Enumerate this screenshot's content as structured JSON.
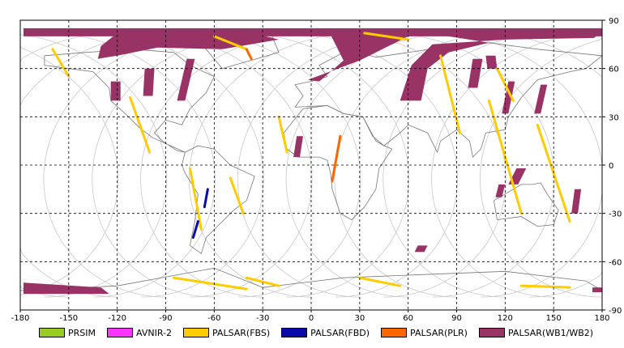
{
  "map": {
    "x_ticks": [
      {
        "value": -180,
        "label": "-180"
      },
      {
        "value": -150,
        "label": "-150"
      },
      {
        "value": -120,
        "label": "-120"
      },
      {
        "value": -90,
        "label": "-90"
      },
      {
        "value": -60,
        "label": "-60"
      },
      {
        "value": -30,
        "label": "-30"
      },
      {
        "value": 0,
        "label": "0"
      },
      {
        "value": 30,
        "label": "30"
      },
      {
        "value": 60,
        "label": "60"
      },
      {
        "value": 90,
        "label": "90"
      },
      {
        "value": 120,
        "label": "120"
      },
      {
        "value": 150,
        "label": "150"
      },
      {
        "value": 180,
        "label": "180"
      }
    ],
    "y_ticks": [
      {
        "value": 90,
        "label": "90"
      },
      {
        "value": 60,
        "label": "60"
      },
      {
        "value": 30,
        "label": "30"
      },
      {
        "value": 0,
        "label": "0"
      },
      {
        "value": -30,
        "label": "-30"
      },
      {
        "value": -60,
        "label": "-60"
      },
      {
        "value": -90,
        "label": "-90"
      }
    ],
    "lon_range": [
      -180,
      180
    ],
    "lat_range": [
      -90,
      90
    ],
    "grid": true,
    "colors": {
      "PRSIM": "#99cc22",
      "AVNIR-2": "#ff33ff",
      "PALSAR(FBS)": "#ffcc00",
      "PALSAR(FBD)": "#0a0aaa",
      "PALSAR(PLR)": "#ff6600",
      "PALSAR(WB1/WB2)": "#993366",
      "coast": "#777777",
      "orbit": "#c8c8c8"
    },
    "swaths": [
      {
        "sensor": "PALSAR(WB1/WB2)",
        "pts": [
          [
            -178,
            85
          ],
          [
            180,
            85
          ],
          [
            180,
            80
          ],
          [
            -178,
            80
          ]
        ]
      },
      {
        "sensor": "PALSAR(WB1/WB2)",
        "pts": [
          [
            -120,
            82
          ],
          [
            -40,
            83
          ],
          [
            -20,
            78
          ],
          [
            -55,
            72
          ],
          [
            -95,
            73
          ],
          [
            -120,
            68
          ],
          [
            -132,
            66
          ],
          [
            -130,
            74
          ]
        ]
      },
      {
        "sensor": "PALSAR(WB1/WB2)",
        "pts": [
          [
            10,
            85
          ],
          [
            60,
            80
          ],
          [
            30,
            65
          ],
          [
            -2,
            53
          ],
          [
            5,
            52
          ],
          [
            20,
            65
          ]
        ]
      },
      {
        "sensor": "PALSAR(WB1/WB2)",
        "pts": [
          [
            60,
            84
          ],
          [
            150,
            84
          ],
          [
            180,
            83
          ],
          [
            175,
            79
          ],
          [
            120,
            78
          ],
          [
            75,
            75
          ],
          [
            62,
            62
          ],
          [
            55,
            40
          ],
          [
            68,
            40
          ],
          [
            72,
            60
          ],
          [
            85,
            70
          ],
          [
            110,
            76
          ]
        ]
      },
      {
        "sensor": "PALSAR(WB1/WB2)",
        "pts": [
          [
            -77,
            66
          ],
          [
            -72,
            66
          ],
          [
            -78,
            40
          ],
          [
            -83,
            40
          ]
        ]
      },
      {
        "sensor": "PALSAR(WB1/WB2)",
        "pts": [
          [
            -124,
            52
          ],
          [
            -118,
            52
          ],
          [
            -118,
            40
          ],
          [
            -124,
            40
          ]
        ]
      },
      {
        "sensor": "PALSAR(WB1/WB2)",
        "pts": [
          [
            -103,
            60
          ],
          [
            -97,
            60
          ],
          [
            -98,
            43
          ],
          [
            -104,
            43
          ]
        ]
      },
      {
        "sensor": "PALSAR(WB1/WB2)",
        "pts": [
          [
            100,
            66
          ],
          [
            106,
            66
          ],
          [
            103,
            48
          ],
          [
            97,
            48
          ]
        ]
      },
      {
        "sensor": "PALSAR(WB1/WB2)",
        "pts": [
          [
            122,
            52
          ],
          [
            126,
            52
          ],
          [
            122,
            32
          ],
          [
            118,
            32
          ]
        ]
      },
      {
        "sensor": "PALSAR(WB1/WB2)",
        "pts": [
          [
            142,
            50
          ],
          [
            146,
            50
          ],
          [
            142,
            32
          ],
          [
            138,
            32
          ]
        ]
      },
      {
        "sensor": "PALSAR(WB1/WB2)",
        "pts": [
          [
            108,
            68
          ],
          [
            114,
            68
          ],
          [
            115,
            60
          ],
          [
            109,
            60
          ]
        ]
      },
      {
        "sensor": "PALSAR(WB1/WB2)",
        "pts": [
          [
            127,
            -2
          ],
          [
            133,
            -2
          ],
          [
            128,
            -12
          ],
          [
            122,
            -12
          ]
        ]
      },
      {
        "sensor": "PALSAR(WB1/WB2)",
        "pts": [
          [
            163,
            -15
          ],
          [
            167,
            -15
          ],
          [
            165,
            -30
          ],
          [
            161,
            -30
          ]
        ]
      },
      {
        "sensor": "PALSAR(WB1/WB2)",
        "pts": [
          [
            -9,
            18
          ],
          [
            -5,
            18
          ],
          [
            -7,
            5
          ],
          [
            -11,
            5
          ]
        ]
      },
      {
        "sensor": "PALSAR(WB1/WB2)",
        "pts": [
          [
            -178,
            -73
          ],
          [
            -130,
            -76
          ],
          [
            -125,
            -80
          ],
          [
            -178,
            -80
          ]
        ]
      },
      {
        "sensor": "PALSAR(WB1/WB2)",
        "pts": [
          [
            174,
            -76
          ],
          [
            180,
            -76
          ],
          [
            180,
            -79
          ],
          [
            174,
            -79
          ]
        ]
      },
      {
        "sensor": "PALSAR(WB1/WB2)",
        "pts": [
          [
            66,
            -50
          ],
          [
            72,
            -50
          ],
          [
            70,
            -54
          ],
          [
            64,
            -54
          ]
        ]
      },
      {
        "sensor": "PALSAR(WB1/WB2)",
        "pts": [
          [
            116,
            -12
          ],
          [
            120,
            -12
          ],
          [
            118,
            -20
          ],
          [
            114,
            -20
          ]
        ]
      },
      {
        "sensor": "PALSAR(FBS)",
        "line": [
          [
            -60,
            80
          ],
          [
            -40,
            72
          ]
        ]
      },
      {
        "sensor": "PALSAR(FBS)",
        "line": [
          [
            33,
            82
          ],
          [
            60,
            78
          ]
        ]
      },
      {
        "sensor": "PALSAR(FBS)",
        "line": [
          [
            -112,
            42
          ],
          [
            -100,
            8
          ]
        ]
      },
      {
        "sensor": "PALSAR(FBS)",
        "line": [
          [
            -75,
            -2
          ],
          [
            -68,
            -40
          ]
        ]
      },
      {
        "sensor": "PALSAR(FBS)",
        "line": [
          [
            -50,
            -8
          ],
          [
            -42,
            -30
          ]
        ]
      },
      {
        "sensor": "PALSAR(FBS)",
        "line": [
          [
            -85,
            -70
          ],
          [
            -40,
            -77
          ]
        ]
      },
      {
        "sensor": "PALSAR(FBS)",
        "line": [
          [
            -40,
            -70
          ],
          [
            -20,
            -75
          ]
        ]
      },
      {
        "sensor": "PALSAR(FBS)",
        "line": [
          [
            30,
            -70
          ],
          [
            55,
            -75
          ]
        ]
      },
      {
        "sensor": "PALSAR(FBS)",
        "line": [
          [
            130,
            -75
          ],
          [
            160,
            -76
          ]
        ]
      },
      {
        "sensor": "PALSAR(FBS)",
        "line": [
          [
            80,
            68
          ],
          [
            92,
            20
          ]
        ]
      },
      {
        "sensor": "PALSAR(FBS)",
        "line": [
          [
            110,
            40
          ],
          [
            130,
            -30
          ]
        ]
      },
      {
        "sensor": "PALSAR(FBS)",
        "line": [
          [
            140,
            25
          ],
          [
            160,
            -35
          ]
        ]
      },
      {
        "sensor": "PALSAR(FBS)",
        "line": [
          [
            -160,
            72
          ],
          [
            -150,
            55
          ]
        ]
      },
      {
        "sensor": "PALSAR(FBS)",
        "line": [
          [
            -20,
            30
          ],
          [
            -15,
            8
          ]
        ]
      },
      {
        "sensor": "PALSAR(FBS)",
        "line": [
          [
            115,
            60
          ],
          [
            125,
            40
          ]
        ]
      },
      {
        "sensor": "PALSAR(FBD)",
        "line": [
          [
            -64,
            -15
          ],
          [
            -66,
            -26
          ]
        ]
      },
      {
        "sensor": "PALSAR(FBD)",
        "line": [
          [
            -70,
            -35
          ],
          [
            -73,
            -45
          ]
        ]
      },
      {
        "sensor": "PALSAR(PLR)",
        "line": [
          [
            -40,
            72
          ],
          [
            -37,
            66
          ]
        ]
      },
      {
        "sensor": "PALSAR(PLR)",
        "line": [
          [
            18,
            18
          ],
          [
            13,
            -10
          ]
        ]
      }
    ]
  },
  "legend": [
    {
      "label": "PRSIM",
      "color": "#99cc22"
    },
    {
      "label": "AVNIR-2",
      "color": "#ff33ff"
    },
    {
      "label": "PALSAR(FBS)",
      "color": "#ffcc00"
    },
    {
      "label": "PALSAR(FBD)",
      "color": "#0a0aaa"
    },
    {
      "label": "PALSAR(PLR)",
      "color": "#ff6600"
    },
    {
      "label": "PALSAR(WB1/WB2)",
      "color": "#993366"
    }
  ]
}
